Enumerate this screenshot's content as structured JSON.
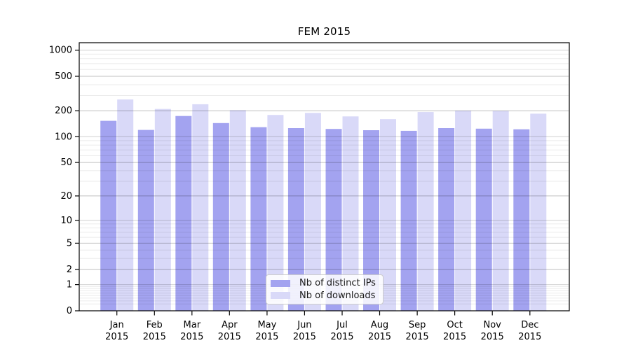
{
  "title": "FEM 2015",
  "chart_data": {
    "type": "bar",
    "title": "FEM 2015",
    "categories": [
      "Jan",
      "Feb",
      "Mar",
      "Apr",
      "May",
      "Jun",
      "Jul",
      "Aug",
      "Sep",
      "Oct",
      "Nov",
      "Dec"
    ],
    "category_year": "2015",
    "series": [
      {
        "name": "Nb of distinct IPs",
        "color": "#a3a3f0",
        "values": [
          153,
          120,
          174,
          144,
          129,
          126,
          123,
          119,
          117,
          126,
          124,
          122
        ]
      },
      {
        "name": "Nb of downloads",
        "color": "#d9d9f8",
        "values": [
          270,
          210,
          238,
          203,
          179,
          189,
          172,
          160,
          193,
          201,
          199,
          185
        ]
      }
    ],
    "y_scale": "log1p",
    "y_ticks": [
      0,
      1,
      2,
      5,
      10,
      20,
      50,
      100,
      200,
      500,
      1000
    ],
    "ylim": [
      0,
      1220
    ],
    "xlabel": "",
    "ylabel": "",
    "grid": "horizontal major and minor gridlines",
    "legend_position": "lower center"
  },
  "colors": {
    "background": "#ffffff",
    "bar_distinct_ips": "#a3a3f0",
    "bar_downloads": "#d9d9f8",
    "grid_major": "rgba(0,0,0,0.18)",
    "grid_minor": "rgba(0,0,0,0.08)",
    "axis": "#000000",
    "legend_border": "#cccccc"
  }
}
